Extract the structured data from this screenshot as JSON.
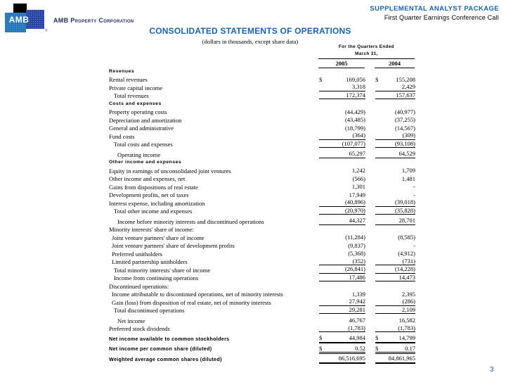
{
  "header": {
    "logo_text": "AMB",
    "registered": "®",
    "company": "AMB Property Corporation",
    "package_title": "SUPPLEMENTAL ANALYST PACKAGE",
    "package_subtitle": "First Quarter Earnings Conference Call"
  },
  "title": "CONSOLIDATED STATEMENTS OF OPERATIONS",
  "subtitle": "(dollars in thousands, except share data)",
  "page_number": "3",
  "colors": {
    "accent_blue": "#1b63ae",
    "company_navy": "#202e60",
    "logo_light_blue": "#2277bb",
    "logo_royal_blue": "#2946a6",
    "logo_black": "#000000"
  },
  "table": {
    "period_line1": "For the Quarters Ended",
    "period_line2": "March 31,",
    "years": [
      "2005",
      "2004"
    ],
    "rows": [
      {
        "label": "Revenues",
        "style": "sanshead"
      },
      {
        "label": "Rental revenues",
        "d1": "$",
        "v1": "169,056",
        "d2": "$",
        "v2": "155,208"
      },
      {
        "label": "Private capital income",
        "v1": "3,318",
        "v2": "2,429",
        "u": "s"
      },
      {
        "label": "Total revenues",
        "ind": 2,
        "v1": "172,374",
        "v2": "157,637",
        "u": "s"
      },
      {
        "label": "Costs and expenses",
        "style": "sanshead"
      },
      {
        "label": "Property operating costs",
        "v1": "(44,429)",
        "v2": "(40,977)"
      },
      {
        "label": "Depreciation and amortization",
        "v1": "(43,485)",
        "v2": "(37,255)"
      },
      {
        "label": "General and administrative",
        "v1": "(18,799)",
        "v2": "(14,567)"
      },
      {
        "label": "Fund costs",
        "v1": "(364)",
        "v2": "(309)",
        "u": "s"
      },
      {
        "label": "Total costs and expenses",
        "ind": 2,
        "v1": "(107,077)",
        "v2": "(93,108)",
        "u": "s"
      },
      {
        "label": "Operating income",
        "ind": 3,
        "gap": true,
        "v1": "65,297",
        "v2": "64,529",
        "u": "s"
      },
      {
        "label": "Other income and expenses",
        "style": "sanshead"
      },
      {
        "label": "Equity in earnings of unconsolidated joint ventures",
        "v1": "1,242",
        "v2": "1,709"
      },
      {
        "label": "Other income and expenses, net",
        "v1": "(566)",
        "v2": "1,481"
      },
      {
        "label": "Gains from dispositions of real estate",
        "v1": "1,301",
        "v2": "-"
      },
      {
        "label": "Development profits, net of taxes",
        "v1": "17,949",
        "v2": "-"
      },
      {
        "label": "Interest expense, including amortization",
        "v1": "(40,896)",
        "v2": "(39,018)",
        "u": "s"
      },
      {
        "label": "Total other income and expenses",
        "ind": 2,
        "v1": "(20,970)",
        "v2": "(35,828)",
        "u": "s"
      },
      {
        "label": "Income before minority interests and discontinued operations",
        "ind": 3,
        "gap": true,
        "v1": "44,327",
        "v2": "28,701",
        "u": "s"
      },
      {
        "label": "Minority interests' share of income:",
        "style": "serifhead"
      },
      {
        "label": "Joint venture partners' share of income",
        "ind": 1,
        "v1": "(11,284)",
        "v2": "(8,585)"
      },
      {
        "label": "Joint venture partners' share of development profits",
        "ind": 1,
        "v1": "(9,837)",
        "v2": "-"
      },
      {
        "label": "Preferred unitholders",
        "ind": 1,
        "v1": "(5,368)",
        "v2": "(4,912)"
      },
      {
        "label": "Limited partnership unitholders",
        "ind": 1,
        "v1": "(352)",
        "v2": "(731)",
        "u": "s"
      },
      {
        "label": "Total minority interests' share of income",
        "ind": 2,
        "v1": "(26,841)",
        "v2": "(14,228)",
        "u": "s"
      },
      {
        "label": "Income from continuing operations",
        "ind": 2,
        "v1": "17,486",
        "v2": "14,473",
        "u": "s"
      },
      {
        "label": "Discontinued operations:",
        "style": "serifhead"
      },
      {
        "label": "Income attributable to discontinued operations, net of minority interests",
        "ind": 1,
        "v1": "1,339",
        "v2": "2,395"
      },
      {
        "label": "Gain (loss) from disposition of real estate, net of minority interests",
        "ind": 1,
        "v1": "27,942",
        "v2": "(286)",
        "u": "s"
      },
      {
        "label": "Total discontinued operations",
        "ind": 2,
        "v1": "29,281",
        "v2": "2,109",
        "u": "s"
      },
      {
        "label": "Net income",
        "ind": 3,
        "gap": true,
        "v1": "46,767",
        "v2": "16,582"
      },
      {
        "label": "Preferred stock dividends",
        "v1": "(1,783)",
        "v2": "(1,783)",
        "u": "s"
      },
      {
        "label": "Net income available to common stockholders",
        "style": "sansrow",
        "gap": true,
        "d1": "$",
        "v1": "44,984",
        "d2": "$",
        "v2": "14,799",
        "u": "d"
      },
      {
        "label": "Net income per common share (diluted)",
        "style": "sansrow",
        "gap": true,
        "d1": "$",
        "v1": "0.52",
        "d2": "$",
        "v2": "0.17",
        "u": "d"
      },
      {
        "label": "Weighted average common shares (diluted)",
        "style": "sansrow",
        "gap": true,
        "v1": "86,516,695",
        "v2": "84,861,965",
        "u": "d"
      }
    ]
  }
}
